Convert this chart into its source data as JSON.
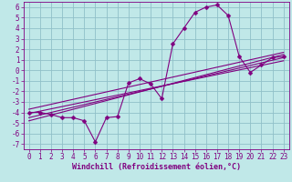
{
  "title": "",
  "xlabel": "Windchill (Refroidissement éolien,°C)",
  "ylabel": "",
  "background_color": "#c0e8e8",
  "grid_color": "#90c0c8",
  "line_color": "#800080",
  "xlim": [
    -0.5,
    23.5
  ],
  "ylim": [
    -7.5,
    6.5
  ],
  "xtick_labels": [
    "0",
    "1",
    "2",
    "3",
    "4",
    "5",
    "6",
    "7",
    "8",
    "9",
    "10",
    "11",
    "12",
    "13",
    "14",
    "15",
    "16",
    "17",
    "18",
    "19",
    "20",
    "21",
    "22",
    "23"
  ],
  "xtick_positions": [
    0,
    1,
    2,
    3,
    4,
    5,
    6,
    7,
    8,
    9,
    10,
    11,
    12,
    13,
    14,
    15,
    16,
    17,
    18,
    19,
    20,
    21,
    22,
    23
  ],
  "ytick_positions": [
    -7,
    -6,
    -5,
    -4,
    -3,
    -2,
    -1,
    0,
    1,
    2,
    3,
    4,
    5,
    6
  ],
  "ytick_labels": [
    "-7",
    "-6",
    "-5",
    "-4",
    "-3",
    "-2",
    "-1",
    "0",
    "1",
    "2",
    "3",
    "4",
    "5",
    "6"
  ],
  "data_line": {
    "x": [
      0,
      1,
      2,
      3,
      4,
      5,
      6,
      7,
      8,
      9,
      10,
      11,
      12,
      13,
      14,
      15,
      16,
      17,
      18,
      19,
      20,
      21,
      22,
      23
    ],
    "y": [
      -4.0,
      -4.0,
      -4.2,
      -4.5,
      -4.5,
      -4.8,
      -6.8,
      -4.5,
      -4.4,
      -1.2,
      -0.8,
      -1.3,
      -2.7,
      2.5,
      4.0,
      5.5,
      6.0,
      6.2,
      5.2,
      1.3,
      -0.2,
      0.5,
      1.2,
      1.3
    ]
  },
  "regression_lines": [
    {
      "x": [
        0,
        23
      ],
      "y": [
        -4.8,
        1.5
      ]
    },
    {
      "x": [
        0,
        23
      ],
      "y": [
        -4.5,
        1.2
      ]
    },
    {
      "x": [
        0,
        23
      ],
      "y": [
        -4.1,
        0.9
      ]
    },
    {
      "x": [
        0,
        23
      ],
      "y": [
        -3.7,
        1.7
      ]
    }
  ],
  "font_color": "#800080",
  "xlabel_fontsize": 6.0,
  "tick_fontsize": 5.5,
  "marker": "D",
  "marker_size": 2.5,
  "linewidth": 0.8
}
